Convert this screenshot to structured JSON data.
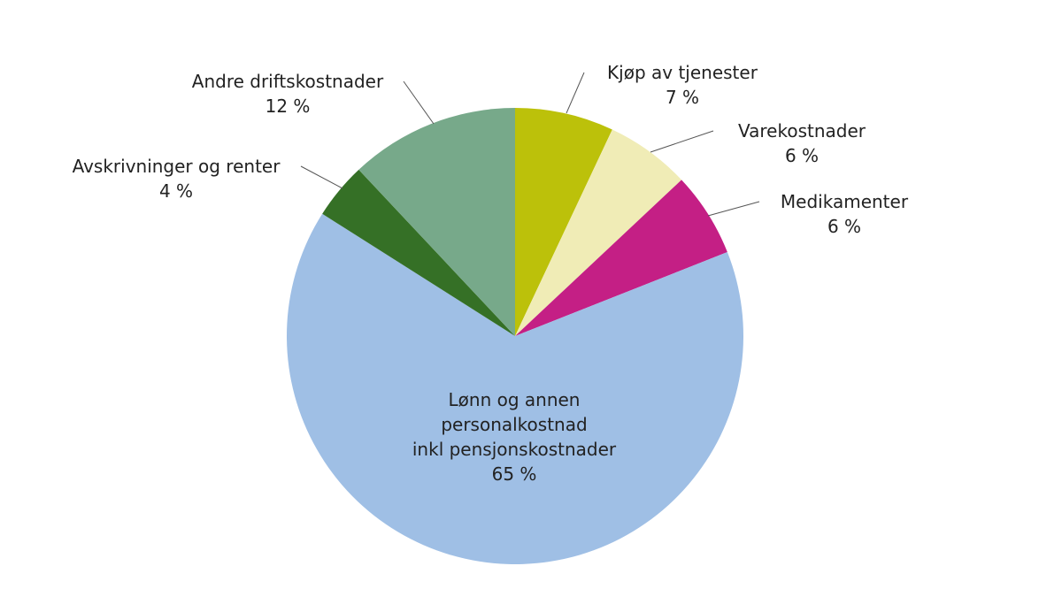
{
  "chart_data": {
    "type": "pie",
    "categories": [
      "Kjøp av tjenester",
      "Varekostnader",
      "Medikamenter",
      "Lønn og annen\npersonalkostnad\ninkl pensjonskostnader",
      "Avskrivninger og renter",
      "Andre driftskostnader"
    ],
    "values": [
      7,
      6,
      6,
      65,
      4,
      12
    ],
    "value_labels": [
      "7 %",
      "6 %",
      "6 %",
      "65 %",
      "4 %",
      "12 %"
    ],
    "colors": [
      "#bcc10a",
      "#f0ecb6",
      "#c41f85",
      "#9fbfe5",
      "#357026",
      "#77a98a"
    ]
  }
}
